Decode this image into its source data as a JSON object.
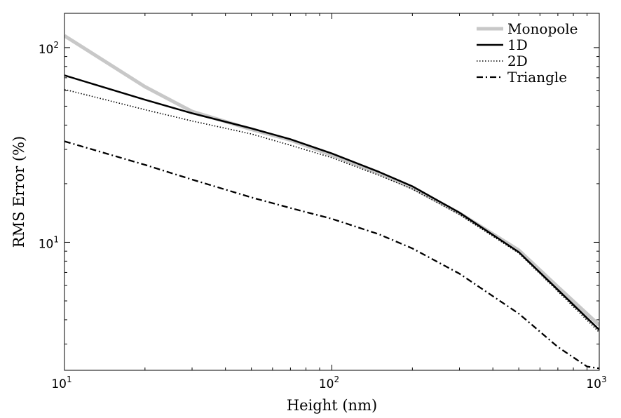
{
  "chart_data": {
    "type": "line",
    "title": "",
    "xlabel": "Height (nm)",
    "ylabel": "RMS Error (%)",
    "xscale": "log",
    "yscale": "log",
    "xlim": [
      10,
      1000
    ],
    "ylim": [
      2.2,
      150
    ],
    "grid": false,
    "legend_position": "top-right",
    "x_ticks": [
      {
        "base": "10",
        "exp": "1",
        "value": 10
      },
      {
        "base": "10",
        "exp": "2",
        "value": 100
      },
      {
        "base": "10",
        "exp": "3",
        "value": 1000
      }
    ],
    "y_ticks": [
      {
        "base": "10",
        "exp": "1",
        "value": 10
      },
      {
        "base": "10",
        "exp": "2",
        "value": 100
      }
    ],
    "series": [
      {
        "name": "Monopole",
        "color": "#c8c8c8",
        "style": "solid-thick",
        "x": [
          10,
          20,
          30,
          50,
          70,
          100,
          150,
          200,
          300,
          500,
          700,
          1000
        ],
        "y": [
          115,
          63,
          47,
          38,
          33.5,
          28,
          22.6,
          19,
          14.1,
          9.1,
          5.9,
          3.75
        ]
      },
      {
        "name": "1D",
        "color": "#000000",
        "style": "solid",
        "x": [
          10,
          20,
          30,
          50,
          70,
          100,
          150,
          200,
          300,
          500,
          700,
          1000
        ],
        "y": [
          72,
          54,
          46,
          38.5,
          33.8,
          28.6,
          23,
          19.4,
          14.2,
          8.9,
          5.7,
          3.55
        ]
      },
      {
        "name": "2D",
        "color": "#000000",
        "style": "dotted",
        "x": [
          10,
          20,
          30,
          50,
          70,
          100,
          150,
          200,
          300,
          500,
          700,
          1000
        ],
        "y": [
          61,
          48,
          42,
          36,
          31.5,
          27.2,
          22.1,
          18.8,
          13.9,
          8.8,
          5.6,
          3.45
        ]
      },
      {
        "name": "Triangle",
        "color": "#000000",
        "style": "dashdot",
        "x": [
          10,
          20,
          30,
          50,
          70,
          100,
          150,
          200,
          300,
          500,
          700,
          900,
          1000
        ],
        "y": [
          33,
          25,
          21,
          17,
          15,
          13.2,
          11,
          9.3,
          6.9,
          4.3,
          2.9,
          2.3,
          2.25
        ]
      }
    ]
  }
}
